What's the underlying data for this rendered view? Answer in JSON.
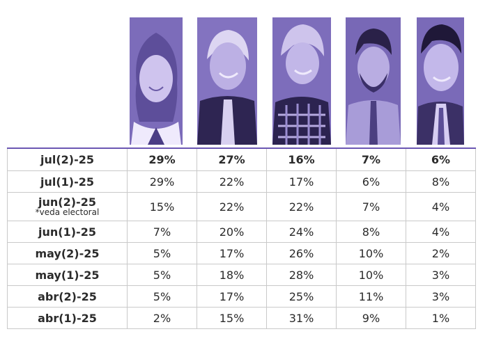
{
  "chart_data": {
    "type": "table",
    "columns": [
      "",
      "",
      "",
      "",
      ""
    ],
    "rows": [
      {
        "label": "jul(2)-25",
        "note": "",
        "values": [
          "29%",
          "27%",
          "16%",
          "7%",
          "6%"
        ]
      },
      {
        "label": "jul(1)-25",
        "note": "",
        "values": [
          "29%",
          "22%",
          "17%",
          "6%",
          "8%"
        ]
      },
      {
        "label": "jun(2)-25",
        "note": "*veda electoral",
        "values": [
          "15%",
          "22%",
          "22%",
          "7%",
          "4%"
        ]
      },
      {
        "label": "jun(1)-25",
        "note": "",
        "values": [
          "7%",
          "20%",
          "24%",
          "8%",
          "4%"
        ]
      },
      {
        "label": "may(2)-25",
        "note": "",
        "values": [
          "5%",
          "17%",
          "26%",
          "10%",
          "2%"
        ]
      },
      {
        "label": "may(1)-25",
        "note": "",
        "values": [
          "5%",
          "18%",
          "28%",
          "10%",
          "3%"
        ]
      },
      {
        "label": "abr(2)-25",
        "note": "",
        "values": [
          "5%",
          "17%",
          "25%",
          "11%",
          "3%"
        ]
      },
      {
        "label": "abr(1)-25",
        "note": "",
        "values": [
          "2%",
          "15%",
          "31%",
          "9%",
          "1%"
        ]
      }
    ]
  },
  "colors": {
    "accent": "#6b56b3",
    "photo_tint": "#7a6ab8",
    "grid": "#c9c9c9"
  },
  "photos": [
    {
      "icon": "candidate-portrait-1-icon"
    },
    {
      "icon": "candidate-portrait-2-icon"
    },
    {
      "icon": "candidate-portrait-3-icon"
    },
    {
      "icon": "candidate-portrait-4-icon"
    },
    {
      "icon": "candidate-portrait-5-icon"
    }
  ]
}
